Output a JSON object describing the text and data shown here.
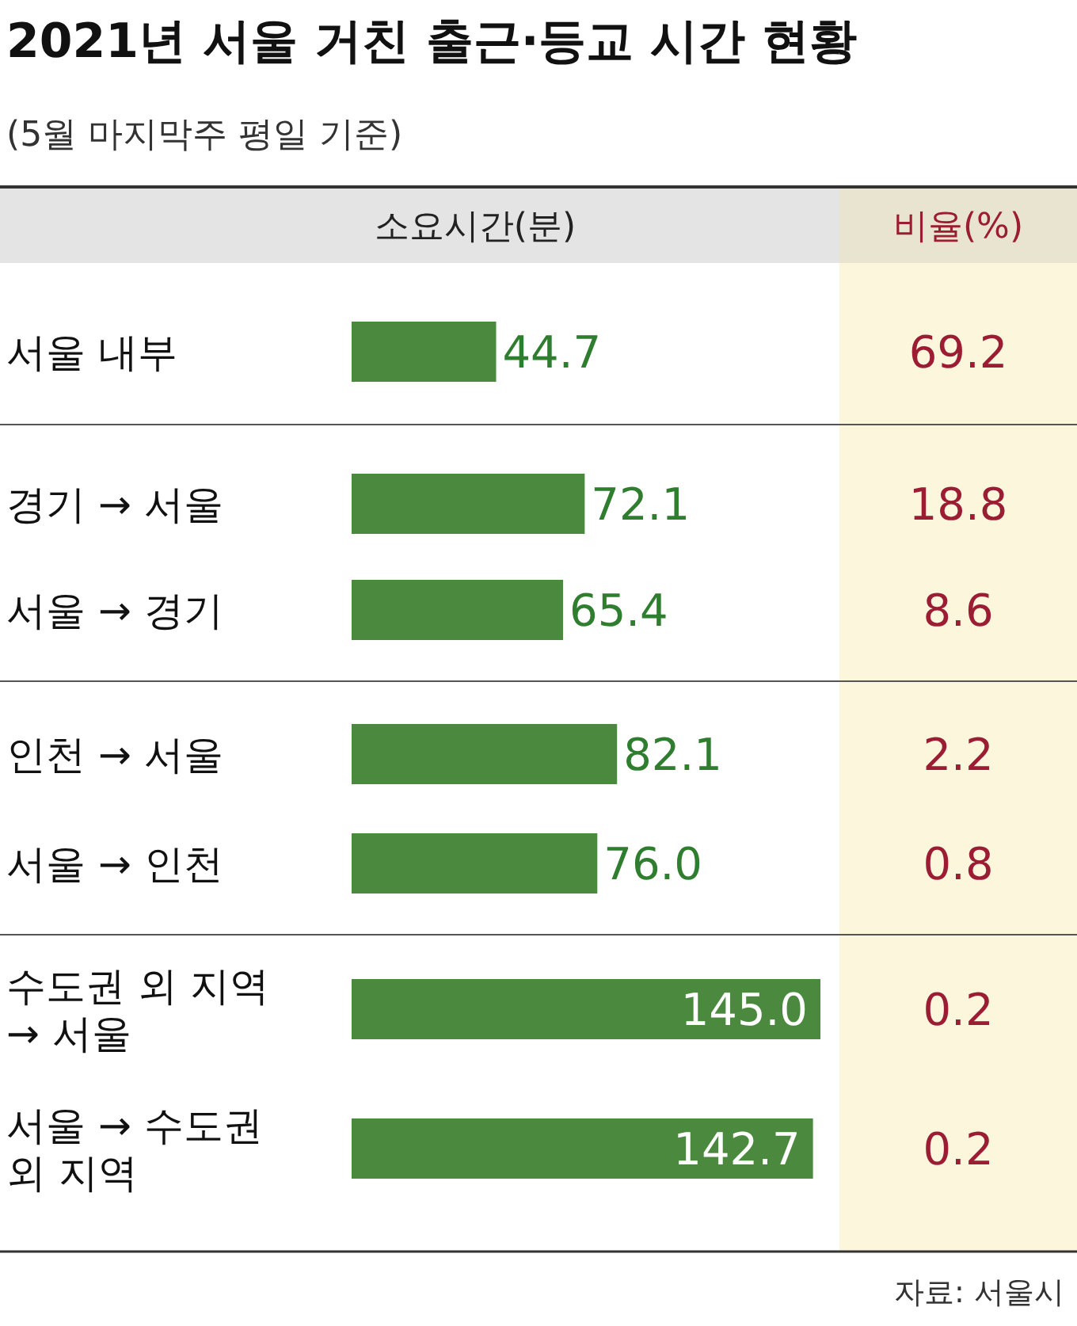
{
  "chart_data": [
    {
      "type": "bar",
      "orientation": "horizontal",
      "title": "2021년 서울 거친 출근·등교 시간 현황",
      "subtitle": "(5월 마지막주 평일 기준)",
      "xlabel": "소요시간(분)",
      "categories": [
        "서울 내부",
        "경기 → 서울",
        "서울 → 경기",
        "인천 → 서울",
        "서울 → 인천",
        "수도권 외 지역 → 서울",
        "서울 → 수도권 외 지역"
      ],
      "values": [
        44.7,
        72.1,
        65.4,
        82.1,
        76.0,
        145.0,
        142.7
      ],
      "value_labels": [
        "44.7",
        "72.1",
        "65.4",
        "82.1",
        "76.0",
        "145.0",
        "142.7"
      ],
      "color": "#4b8a3e",
      "annotations": [
        "자료: 서울시"
      ]
    },
    {
      "type": "other",
      "title": "비율(%)",
      "values": [
        69.2,
        18.8,
        8.6,
        2.2,
        0.8,
        0.2,
        0.2
      ],
      "color": "#9b1d34",
      "data_labels": true
    }
  ]
}
